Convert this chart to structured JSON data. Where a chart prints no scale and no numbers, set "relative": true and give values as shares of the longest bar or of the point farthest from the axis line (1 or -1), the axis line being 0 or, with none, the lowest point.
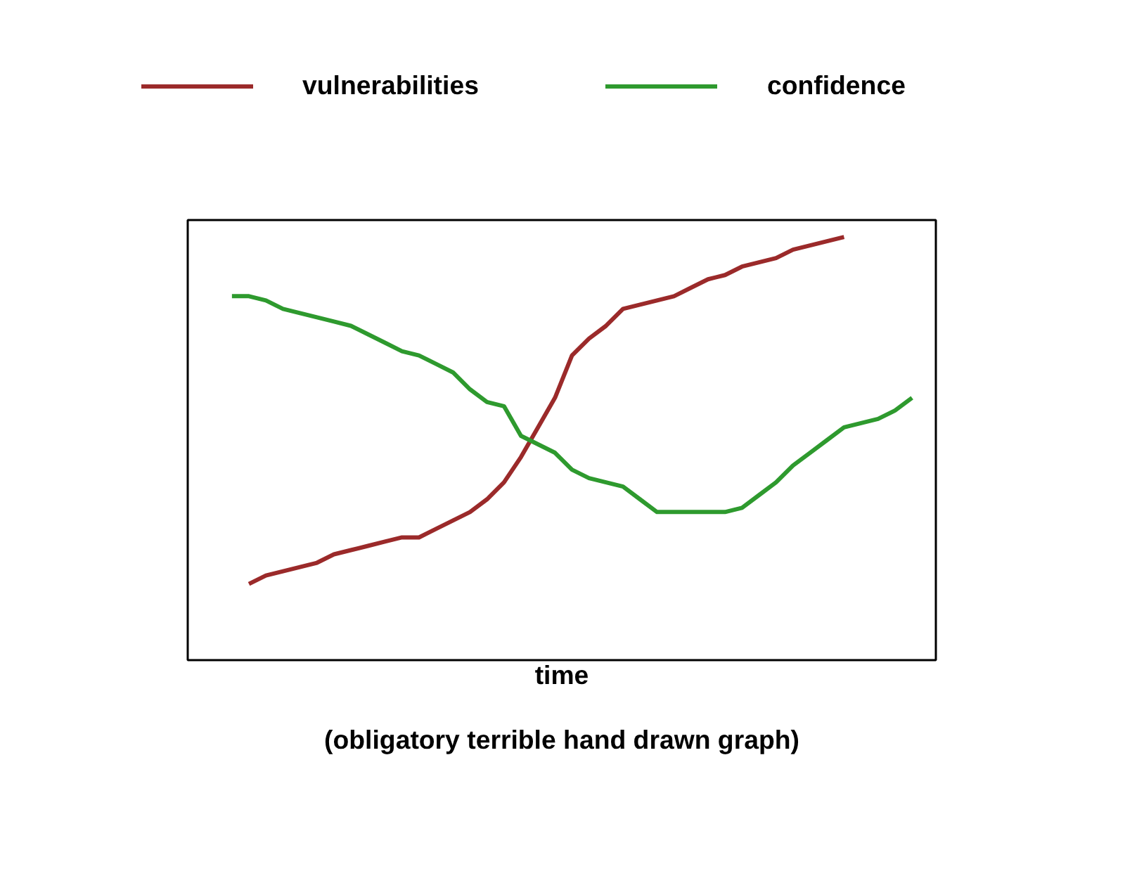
{
  "chart_data": {
    "type": "line",
    "relative": true,
    "xlabel": "time",
    "annotations": [
      "(obligatory terrible hand drawn graph)"
    ],
    "categories": [
      null,
      null,
      null,
      null,
      null,
      null,
      null,
      null,
      null,
      null,
      null,
      null,
      null,
      null,
      null,
      null,
      null,
      null,
      null,
      null,
      null,
      null,
      null,
      null,
      null,
      null,
      null,
      null,
      null,
      null,
      null,
      null,
      null,
      null,
      null,
      null,
      null,
      null,
      null,
      null,
      null
    ],
    "series": [
      {
        "name": "vulnerabilities",
        "color": "#9b2a2a",
        "values": [
          null,
          0.18,
          0.2,
          0.21,
          0.22,
          0.23,
          0.25,
          0.26,
          0.27,
          0.28,
          0.29,
          0.29,
          0.31,
          0.33,
          0.35,
          0.38,
          0.42,
          0.48,
          0.55,
          0.62,
          0.72,
          0.76,
          0.79,
          0.83,
          0.84,
          0.85,
          0.86,
          0.88,
          0.9,
          0.91,
          0.93,
          0.94,
          0.95,
          0.97,
          0.98,
          0.99,
          1,
          null,
          null,
          null,
          null
        ]
      },
      {
        "name": "confidence",
        "color": "#2e9a2e",
        "values": [
          0.86,
          0.86,
          0.85,
          0.83,
          0.82,
          0.81,
          0.8,
          0.79,
          0.77,
          0.75,
          0.73,
          0.72,
          0.7,
          0.68,
          0.64,
          0.61,
          0.6,
          0.53,
          0.51,
          0.49,
          0.45,
          0.43,
          0.42,
          0.41,
          0.38,
          0.35,
          0.35,
          0.35,
          0.35,
          0.35,
          0.36,
          0.39,
          0.42,
          0.46,
          0.49,
          0.52,
          0.55,
          0.56,
          0.57,
          0.59,
          0.62
        ]
      }
    ],
    "grid": false,
    "legend": "top",
    "line_style": "solid"
  }
}
